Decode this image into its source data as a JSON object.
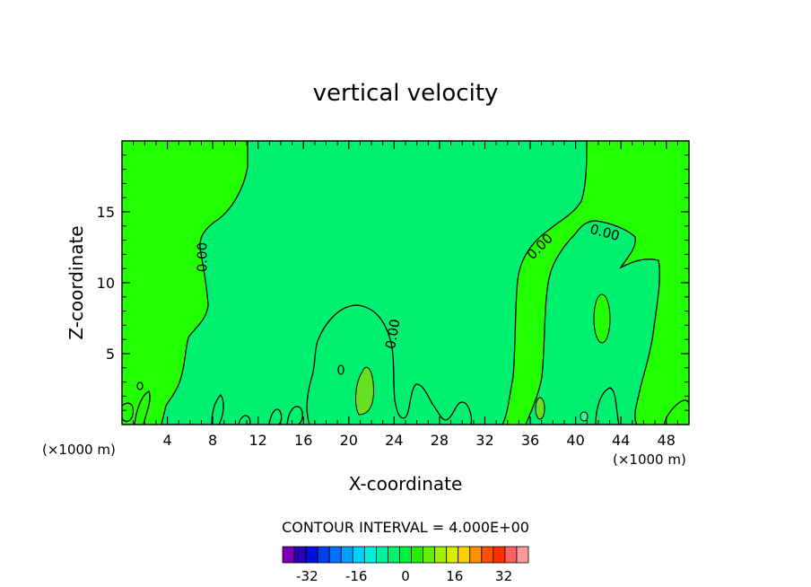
{
  "chart_data": {
    "type": "heatmap",
    "title": "vertical velocity",
    "xlabel": "X-coordinate",
    "ylabel": "Z-coordinate",
    "x_unit_left": "(×1000 m)",
    "x_unit_right": "(×1000 m)",
    "xlim": [
      0,
      50
    ],
    "ylim": [
      0,
      20
    ],
    "xticks": [
      4,
      8,
      12,
      16,
      20,
      24,
      28,
      32,
      36,
      40,
      44,
      48
    ],
    "yticks": [
      5,
      10,
      15
    ],
    "grid": false,
    "contour_interval_text": "CONTOUR INTERVAL = 4.000E+00",
    "contour_labels": [
      {
        "text": "0.00",
        "x": 7.0,
        "y": 11.8,
        "angle": -90
      },
      {
        "text": "0.00",
        "x": 23.8,
        "y": 6.4,
        "angle": -80
      },
      {
        "text": "0.00",
        "x": 36.8,
        "y": 12.6,
        "angle": -45
      },
      {
        "text": "0.00",
        "x": 42.6,
        "y": 13.6,
        "angle": 15
      }
    ],
    "colorbar": {
      "tick_labels": [
        "-32",
        "-16",
        "0",
        "16",
        "32"
      ],
      "tick_values": [
        -32,
        -16,
        0,
        16,
        32
      ],
      "levels": [
        -40,
        -36,
        -32,
        -28,
        -24,
        -20,
        -16,
        -12,
        -8,
        -4,
        0,
        4,
        8,
        12,
        16,
        20,
        24,
        28,
        32,
        36,
        40
      ],
      "colors": [
        "#7a00b8",
        "#2a00b0",
        "#0010d8",
        "#0040f0",
        "#0070ff",
        "#00a0ff",
        "#00d0ff",
        "#00f0e0",
        "#00f0a0",
        "#00f070",
        "#00f040",
        "#20f000",
        "#60f000",
        "#a0f000",
        "#d8f000",
        "#ffd000",
        "#ff9000",
        "#ff5000",
        "#ff3000",
        "#ff6060",
        "#ff9898"
      ]
    },
    "fill_colors": {
      "background": "#22ff00",
      "interior": "#00f070",
      "updraft_core": "#66e020",
      "weak_down": "#40f0a0"
    }
  }
}
